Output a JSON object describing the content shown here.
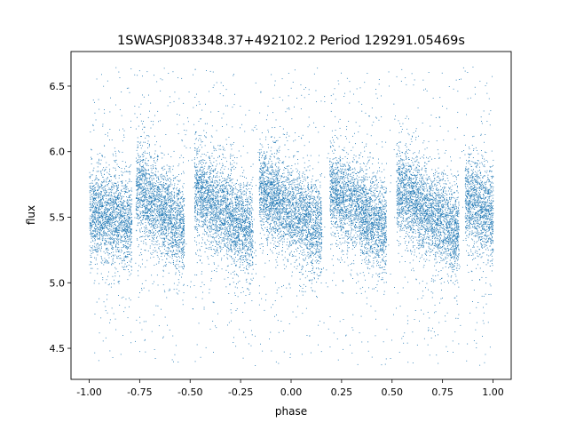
{
  "chart_data": {
    "type": "scatter",
    "title": "1SWASPJ083348.37+492102.2 Period 129291.05469s",
    "xlabel": "phase",
    "ylabel": "flux",
    "xlim": [
      -1.09,
      1.09
    ],
    "ylim": [
      4.263,
      6.764
    ],
    "xticks": [
      "-1.00",
      "-0.75",
      "-0.50",
      "-0.25",
      "0.00",
      "0.25",
      "0.50",
      "0.75",
      "1.00"
    ],
    "xtick_values": [
      -1,
      -0.75,
      -0.5,
      -0.25,
      0,
      0.25,
      0.5,
      0.75,
      1
    ],
    "yticks": [
      "4.5",
      "5.0",
      "5.5",
      "6.0",
      "6.5"
    ],
    "ytick_values": [
      4.5,
      5.0,
      5.5,
      6.0,
      6.5
    ],
    "grid": false,
    "color": "#1f77b4",
    "data_x_range": [
      -1.0,
      1.0
    ],
    "data_flux_range": [
      4.37,
      6.65
    ],
    "clusters": [
      {
        "phase": [
          -1.0,
          -0.79
        ],
        "flux_start": 5.55,
        "flux_end": 5.45,
        "spread": 0.17
      },
      {
        "phase": [
          -0.77,
          -0.53
        ],
        "flux_start": 5.72,
        "flux_end": 5.4,
        "spread": 0.17
      },
      {
        "phase": [
          -0.48,
          -0.19
        ],
        "flux_start": 5.72,
        "flux_end": 5.38,
        "spread": 0.17
      },
      {
        "phase": [
          -0.16,
          0.15
        ],
        "flux_start": 5.72,
        "flux_end": 5.4,
        "spread": 0.17
      },
      {
        "phase": [
          0.19,
          0.47
        ],
        "flux_start": 5.72,
        "flux_end": 5.4,
        "spread": 0.17
      },
      {
        "phase": [
          0.52,
          0.83
        ],
        "flux_start": 5.72,
        "flux_end": 5.38,
        "spread": 0.17
      },
      {
        "phase": [
          0.86,
          1.0
        ],
        "flux_start": 5.68,
        "flux_end": 5.5,
        "spread": 0.17
      }
    ]
  }
}
